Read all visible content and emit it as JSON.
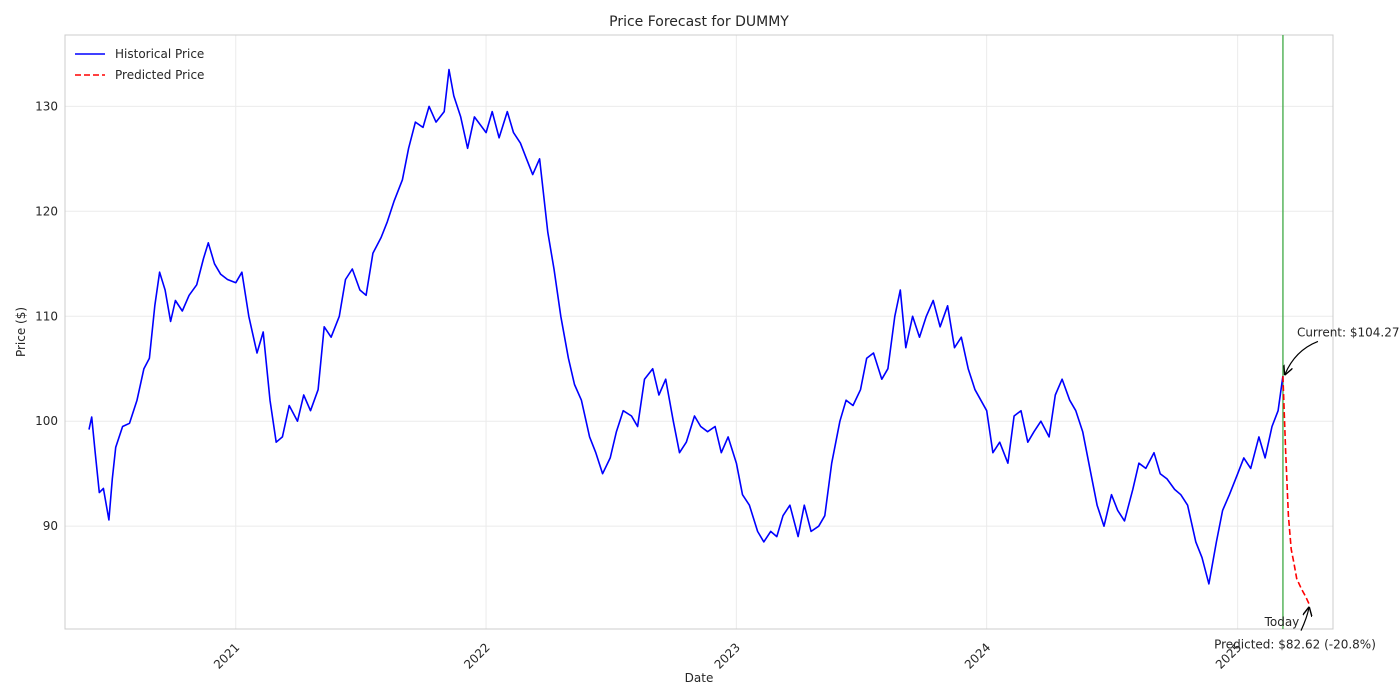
{
  "chart_data": {
    "type": "line",
    "title": "Price Forecast for DUMMY",
    "xlabel": "Date",
    "ylabel": "Price ($)",
    "x_range": [
      "2020-04-27",
      "2025-05-20"
    ],
    "ylim": [
      80.2,
      136.8
    ],
    "x_ticks": [
      {
        "date": "2021-01-01",
        "label": "2021"
      },
      {
        "date": "2022-01-01",
        "label": "2022"
      },
      {
        "date": "2023-01-01",
        "label": "2023"
      },
      {
        "date": "2024-01-01",
        "label": "2024"
      },
      {
        "date": "2025-01-01",
        "label": "2025"
      }
    ],
    "y_ticks": [
      90,
      100,
      110,
      120,
      130
    ],
    "grid": true,
    "legend_position": "top-left",
    "series": [
      {
        "name": "Historical Price",
        "color": "#0000ff",
        "style": "solid",
        "points": [
          [
            "2020-06-01",
            99.2
          ],
          [
            "2020-06-05",
            100.4
          ],
          [
            "2020-06-10",
            97.0
          ],
          [
            "2020-06-16",
            93.2
          ],
          [
            "2020-06-22",
            93.6
          ],
          [
            "2020-06-30",
            90.6
          ],
          [
            "2020-07-05",
            94.5
          ],
          [
            "2020-07-10",
            97.5
          ],
          [
            "2020-07-20",
            99.5
          ],
          [
            "2020-07-30",
            99.8
          ],
          [
            "2020-08-10",
            102.0
          ],
          [
            "2020-08-20",
            105.0
          ],
          [
            "2020-08-28",
            106.0
          ],
          [
            "2020-09-05",
            111.0
          ],
          [
            "2020-09-12",
            114.2
          ],
          [
            "2020-09-20",
            112.5
          ],
          [
            "2020-09-28",
            109.5
          ],
          [
            "2020-10-05",
            111.5
          ],
          [
            "2020-10-15",
            110.5
          ],
          [
            "2020-10-25",
            112.0
          ],
          [
            "2020-11-05",
            113.0
          ],
          [
            "2020-11-15",
            115.5
          ],
          [
            "2020-11-22",
            117.0
          ],
          [
            "2020-12-01",
            115.0
          ],
          [
            "2020-12-10",
            114.0
          ],
          [
            "2020-12-20",
            113.5
          ],
          [
            "2021-01-01",
            113.2
          ],
          [
            "2021-01-10",
            114.2
          ],
          [
            "2021-01-20",
            110.0
          ],
          [
            "2021-02-01",
            106.5
          ],
          [
            "2021-02-10",
            108.5
          ],
          [
            "2021-02-20",
            102.0
          ],
          [
            "2021-03-01",
            98.0
          ],
          [
            "2021-03-10",
            98.5
          ],
          [
            "2021-03-20",
            101.5
          ],
          [
            "2021-04-01",
            100.0
          ],
          [
            "2021-04-10",
            102.5
          ],
          [
            "2021-04-20",
            101.0
          ],
          [
            "2021-05-01",
            103.0
          ],
          [
            "2021-05-10",
            109.0
          ],
          [
            "2021-05-20",
            108.0
          ],
          [
            "2021-06-01",
            110.0
          ],
          [
            "2021-06-10",
            113.5
          ],
          [
            "2021-06-20",
            114.5
          ],
          [
            "2021-07-01",
            112.5
          ],
          [
            "2021-07-10",
            112.0
          ],
          [
            "2021-07-20",
            116.0
          ],
          [
            "2021-08-01",
            117.5
          ],
          [
            "2021-08-10",
            119.0
          ],
          [
            "2021-08-20",
            121.0
          ],
          [
            "2021-09-01",
            123.0
          ],
          [
            "2021-09-10",
            126.0
          ],
          [
            "2021-09-20",
            128.5
          ],
          [
            "2021-10-01",
            128.0
          ],
          [
            "2021-10-10",
            130.0
          ],
          [
            "2021-10-20",
            128.5
          ],
          [
            "2021-11-01",
            129.5
          ],
          [
            "2021-11-08",
            133.5
          ],
          [
            "2021-11-15",
            131.0
          ],
          [
            "2021-11-25",
            129.0
          ],
          [
            "2021-12-05",
            126.0
          ],
          [
            "2021-12-15",
            129.0
          ],
          [
            "2022-01-01",
            127.5
          ],
          [
            "2022-01-10",
            129.5
          ],
          [
            "2022-01-20",
            127.0
          ],
          [
            "2022-02-01",
            129.5
          ],
          [
            "2022-02-10",
            127.5
          ],
          [
            "2022-02-20",
            126.5
          ],
          [
            "2022-03-01",
            125.0
          ],
          [
            "2022-03-10",
            123.5
          ],
          [
            "2022-03-20",
            125.0
          ],
          [
            "2022-04-01",
            118.0
          ],
          [
            "2022-04-10",
            114.5
          ],
          [
            "2022-04-20",
            110.0
          ],
          [
            "2022-05-01",
            106.0
          ],
          [
            "2022-05-10",
            103.5
          ],
          [
            "2022-05-20",
            102.0
          ],
          [
            "2022-06-01",
            98.5
          ],
          [
            "2022-06-10",
            97.0
          ],
          [
            "2022-06-20",
            95.0
          ],
          [
            "2022-07-01",
            96.5
          ],
          [
            "2022-07-10",
            99.0
          ],
          [
            "2022-07-20",
            101.0
          ],
          [
            "2022-08-01",
            100.5
          ],
          [
            "2022-08-10",
            99.5
          ],
          [
            "2022-08-20",
            104.0
          ],
          [
            "2022-09-01",
            105.0
          ],
          [
            "2022-09-10",
            102.5
          ],
          [
            "2022-09-20",
            104.0
          ],
          [
            "2022-10-01",
            100.0
          ],
          [
            "2022-10-10",
            97.0
          ],
          [
            "2022-10-20",
            98.0
          ],
          [
            "2022-11-01",
            100.5
          ],
          [
            "2022-11-10",
            99.5
          ],
          [
            "2022-11-20",
            99.0
          ],
          [
            "2022-12-01",
            99.5
          ],
          [
            "2022-12-10",
            97.0
          ],
          [
            "2022-12-20",
            98.5
          ],
          [
            "2023-01-01",
            96.0
          ],
          [
            "2023-01-10",
            93.0
          ],
          [
            "2023-01-20",
            92.0
          ],
          [
            "2023-02-01",
            89.5
          ],
          [
            "2023-02-10",
            88.5
          ],
          [
            "2023-02-20",
            89.5
          ],
          [
            "2023-03-01",
            89.0
          ],
          [
            "2023-03-10",
            91.0
          ],
          [
            "2023-03-20",
            92.0
          ],
          [
            "2023-04-01",
            89.0
          ],
          [
            "2023-04-10",
            92.0
          ],
          [
            "2023-04-20",
            89.5
          ],
          [
            "2023-05-01",
            90.0
          ],
          [
            "2023-05-10",
            91.0
          ],
          [
            "2023-05-20",
            96.0
          ],
          [
            "2023-06-01",
            100.0
          ],
          [
            "2023-06-10",
            102.0
          ],
          [
            "2023-06-20",
            101.5
          ],
          [
            "2023-07-01",
            103.0
          ],
          [
            "2023-07-10",
            106.0
          ],
          [
            "2023-07-20",
            106.5
          ],
          [
            "2023-08-01",
            104.0
          ],
          [
            "2023-08-10",
            105.0
          ],
          [
            "2023-08-20",
            110.0
          ],
          [
            "2023-08-28",
            112.5
          ],
          [
            "2023-09-05",
            107.0
          ],
          [
            "2023-09-15",
            110.0
          ],
          [
            "2023-09-25",
            108.0
          ],
          [
            "2023-10-05",
            110.0
          ],
          [
            "2023-10-15",
            111.5
          ],
          [
            "2023-10-25",
            109.0
          ],
          [
            "2023-11-05",
            111.0
          ],
          [
            "2023-11-15",
            107.0
          ],
          [
            "2023-11-25",
            108.0
          ],
          [
            "2023-12-05",
            105.0
          ],
          [
            "2023-12-15",
            103.0
          ],
          [
            "2024-01-01",
            101.0
          ],
          [
            "2024-01-10",
            97.0
          ],
          [
            "2024-01-20",
            98.0
          ],
          [
            "2024-02-01",
            96.0
          ],
          [
            "2024-02-10",
            100.5
          ],
          [
            "2024-02-20",
            101.0
          ],
          [
            "2024-03-01",
            98.0
          ],
          [
            "2024-03-10",
            99.0
          ],
          [
            "2024-03-20",
            100.0
          ],
          [
            "2024-04-01",
            98.5
          ],
          [
            "2024-04-10",
            102.5
          ],
          [
            "2024-04-20",
            104.0
          ],
          [
            "2024-05-01",
            102.0
          ],
          [
            "2024-05-10",
            101.0
          ],
          [
            "2024-05-20",
            99.0
          ],
          [
            "2024-06-01",
            95.0
          ],
          [
            "2024-06-10",
            92.0
          ],
          [
            "2024-06-20",
            90.0
          ],
          [
            "2024-07-01",
            93.0
          ],
          [
            "2024-07-10",
            91.5
          ],
          [
            "2024-07-20",
            90.5
          ],
          [
            "2024-08-01",
            93.5
          ],
          [
            "2024-08-10",
            96.0
          ],
          [
            "2024-08-20",
            95.5
          ],
          [
            "2024-09-01",
            97.0
          ],
          [
            "2024-09-10",
            95.0
          ],
          [
            "2024-09-20",
            94.5
          ],
          [
            "2024-10-01",
            93.5
          ],
          [
            "2024-10-10",
            93.0
          ],
          [
            "2024-10-20",
            92.0
          ],
          [
            "2024-11-01",
            88.5
          ],
          [
            "2024-11-10",
            87.0
          ],
          [
            "2024-11-20",
            84.5
          ],
          [
            "2024-12-01",
            88.5
          ],
          [
            "2024-12-10",
            91.5
          ],
          [
            "2024-12-20",
            93.0
          ],
          [
            "2025-01-01",
            95.0
          ],
          [
            "2025-01-10",
            96.5
          ],
          [
            "2025-01-20",
            95.5
          ],
          [
            "2025-02-01",
            98.5
          ],
          [
            "2025-02-10",
            96.5
          ],
          [
            "2025-02-20",
            99.5
          ],
          [
            "2025-03-01",
            101.0
          ],
          [
            "2025-03-08",
            104.3
          ]
        ]
      },
      {
        "name": "Predicted Price",
        "color": "#ff0000",
        "style": "dashed",
        "points": [
          [
            "2025-03-08",
            104.3
          ],
          [
            "2025-03-12",
            97.0
          ],
          [
            "2025-03-16",
            91.0
          ],
          [
            "2025-03-20",
            87.8
          ],
          [
            "2025-03-24",
            86.5
          ],
          [
            "2025-03-28",
            85.0
          ],
          [
            "2025-04-04",
            84.0
          ],
          [
            "2025-04-10",
            83.3
          ],
          [
            "2025-04-15",
            82.6
          ]
        ]
      }
    ],
    "today_line": {
      "date": "2025-03-08",
      "color": "#4caf50",
      "label": "Today"
    },
    "annotations": {
      "current": {
        "text": "Current: $104.27",
        "date": "2025-03-08",
        "value": 104.27
      },
      "predicted": {
        "text": "Predicted: $82.62 (-20.8%)",
        "date": "2025-04-15",
        "value": 82.62
      }
    }
  }
}
